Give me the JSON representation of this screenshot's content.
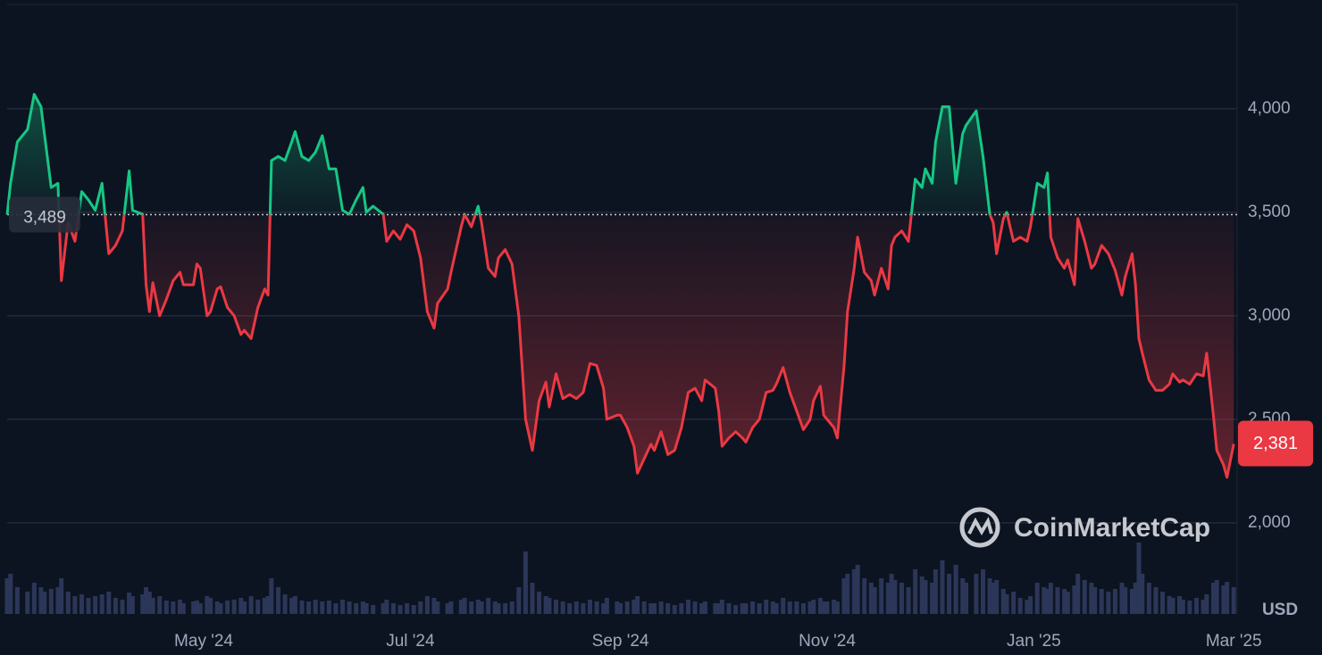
{
  "chart_data": {
    "type": "line",
    "x": [
      0,
      1,
      3,
      6,
      8,
      10,
      11,
      13,
      15,
      16,
      18,
      20,
      22,
      24,
      26,
      28,
      30,
      32,
      34,
      36,
      37,
      40,
      41,
      42,
      43,
      45,
      47,
      49,
      51,
      52,
      55,
      56,
      57,
      59,
      60,
      62,
      63,
      65,
      67,
      69,
      70,
      72,
      74,
      76,
      77,
      78,
      80,
      82,
      84,
      85,
      87,
      89,
      91,
      93,
      95,
      97,
      99,
      101,
      103,
      105,
      106,
      108,
      111,
      112,
      114,
      116,
      118,
      120,
      122,
      124,
      126,
      127,
      130,
      131,
      134,
      135,
      137,
      139,
      140,
      142,
      144,
      145,
      147,
      149,
      151,
      153,
      155,
      157,
      159,
      160,
      162,
      164,
      166,
      168,
      170,
      172,
      174,
      176,
      177,
      180,
      181,
      183,
      185,
      186,
      188,
      190,
      191,
      193,
      195,
      197,
      199,
      201,
      203,
      205,
      206,
      209,
      210,
      211,
      213,
      215,
      217,
      218,
      220,
      222,
      224,
      226,
      227,
      229,
      231,
      233,
      235,
      237,
      238,
      240,
      241,
      242,
      244,
      245,
      247,
      248,
      250,
      251,
      253,
      255,
      256,
      258,
      260,
      261,
      262,
      264,
      266,
      268,
      270,
      271,
      273,
      274,
      276,
      278,
      280,
      282,
      283,
      286,
      288,
      290,
      291,
      292,
      294,
      295,
      297,
      299,
      301,
      302,
      304,
      306,
      307,
      308,
      310,
      312,
      313,
      315,
      316,
      318,
      320,
      321,
      323,
      325,
      327,
      329,
      330,
      332,
      333,
      334,
      335,
      337,
      339,
      341,
      343,
      344,
      346,
      347,
      349,
      351,
      353,
      354,
      356,
      357,
      359,
      360,
      362
    ],
    "series": [
      {
        "color": "#ea3943",
        "values": [
          3489,
          3640,
          3840,
          3900,
          4070,
          4010,
          3880,
          3620,
          3640,
          3170,
          3450,
          3360,
          3600,
          3560,
          3510,
          3640,
          3300,
          3340,
          3410,
          3700,
          3510,
          3490,
          3150,
          3020,
          3160,
          3000,
          3080,
          3170,
          3210,
          3150,
          3150,
          3250,
          3230,
          3000,
          3020,
          3130,
          3140,
          3040,
          3000,
          2910,
          2930,
          2890,
          3040,
          3130,
          3100,
          3750,
          3770,
          3750,
          3840,
          3890,
          3770,
          3750,
          3790,
          3870,
          3710,
          3710,
          3510,
          3490,
          3560,
          3620,
          3500,
          3530,
          3490,
          3360,
          3410,
          3370,
          3440,
          3410,
          3280,
          3020,
          2940,
          3060,
          3130,
          3210,
          3430,
          3490,
          3430,
          3530,
          3450,
          3230,
          3190,
          3280,
          3320,
          3250,
          3000,
          2500,
          2350,
          2590,
          2680,
          2560,
          2720,
          2600,
          2620,
          2600,
          2630,
          2770,
          2760,
          2650,
          2500,
          2520,
          2520,
          2460,
          2370,
          2240,
          2310,
          2380,
          2350,
          2440,
          2330,
          2350,
          2460,
          2630,
          2650,
          2590,
          2690,
          2650,
          2540,
          2370,
          2410,
          2440,
          2410,
          2390,
          2460,
          2500,
          2630,
          2640,
          2670,
          2750,
          2630,
          2540,
          2450,
          2500,
          2590,
          2660,
          2520,
          2500,
          2460,
          2410,
          2760,
          3020,
          3230,
          3380,
          3210,
          3170,
          3100,
          3230,
          3130,
          3340,
          3380,
          3410,
          3360,
          3660,
          3620,
          3710,
          3640,
          3840,
          4010,
          4010,
          3640,
          3880,
          3920,
          3990,
          3770,
          3490,
          3450,
          3300,
          3470,
          3500,
          3360,
          3380,
          3360,
          3430,
          3640,
          3620,
          3690,
          3380,
          3280,
          3230,
          3270,
          3150,
          3470,
          3360,
          3230,
          3250,
          3340,
          3300,
          3220,
          3100,
          3190,
          3300,
          3150,
          2890,
          2820,
          2690,
          2640,
          2640,
          2670,
          2720,
          2680,
          2690,
          2670,
          2720,
          2710,
          2820,
          2520,
          2350,
          2280,
          2220,
          2381
        ]
      },
      {
        "color": "#2b3658",
        "axis": "y2",
        "values": [
          40,
          45,
          30,
          25,
          35,
          30,
          25,
          28,
          30,
          40,
          25,
          20,
          22,
          18,
          20,
          22,
          25,
          18,
          16,
          24,
          20,
          22,
          30,
          25,
          18,
          20,
          15,
          14,
          16,
          12,
          14,
          15,
          12,
          20,
          18,
          14,
          12,
          15,
          16,
          18,
          14,
          20,
          16,
          18,
          20,
          40,
          30,
          22,
          18,
          20,
          15,
          14,
          16,
          14,
          15,
          12,
          16,
          14,
          12,
          14,
          12,
          10,
          12,
          16,
          12,
          10,
          12,
          10,
          14,
          20,
          18,
          14,
          12,
          14,
          16,
          18,
          14,
          16,
          14,
          18,
          14,
          12,
          12,
          14,
          30,
          70,
          35,
          25,
          20,
          18,
          16,
          14,
          12,
          14,
          12,
          16,
          14,
          12,
          18,
          14,
          12,
          14,
          16,
          20,
          14,
          12,
          12,
          14,
          12,
          10,
          12,
          16,
          14,
          12,
          14,
          12,
          12,
          16,
          12,
          10,
          12,
          12,
          14,
          12,
          16,
          14,
          12,
          18,
          14,
          14,
          12,
          14,
          16,
          18,
          14,
          14,
          16,
          14,
          40,
          45,
          50,
          55,
          40,
          35,
          30,
          40,
          35,
          45,
          38,
          35,
          30,
          50,
          42,
          38,
          35,
          50,
          60,
          45,
          55,
          40,
          35,
          45,
          50,
          40,
          35,
          38,
          28,
          22,
          25,
          18,
          16,
          20,
          35,
          30,
          28,
          35,
          30,
          28,
          25,
          32,
          45,
          38,
          35,
          30,
          28,
          25,
          28,
          35,
          30,
          28,
          35,
          80,
          45,
          35,
          30,
          25,
          20,
          18,
          20,
          16,
          15,
          18,
          16,
          22,
          35,
          38,
          32,
          36,
          30
        ]
      }
    ],
    "xlim": [
      0,
      363
    ],
    "xticks": [
      {
        "value": 58,
        "label": "May '24"
      },
      {
        "value": 119,
        "label": "Jul '24"
      },
      {
        "value": 181,
        "label": "Sep '24"
      },
      {
        "value": 242,
        "label": "Nov '24"
      },
      {
        "value": 303,
        "label": "Jan '25"
      },
      {
        "value": 362,
        "label": "Mar '25"
      }
    ],
    "ylim": [
      1560,
      4504
    ],
    "yticks": [
      {
        "value": 2000,
        "label": "2,000"
      },
      {
        "value": 2500,
        "label": "2,500"
      },
      {
        "value": 3000,
        "label": "3,000"
      },
      {
        "value": 3500,
        "label": "3,500"
      },
      {
        "value": 4000,
        "label": "4,000"
      }
    ],
    "y2lim": [
      0,
      100
    ],
    "y_label": "USD",
    "baseline": {
      "value": 3489,
      "label": "3,489"
    },
    "current": {
      "value": 2381,
      "label": "2,381"
    },
    "up_color": "#16c784",
    "grid": true,
    "watermark": "CoinMarketCap"
  }
}
